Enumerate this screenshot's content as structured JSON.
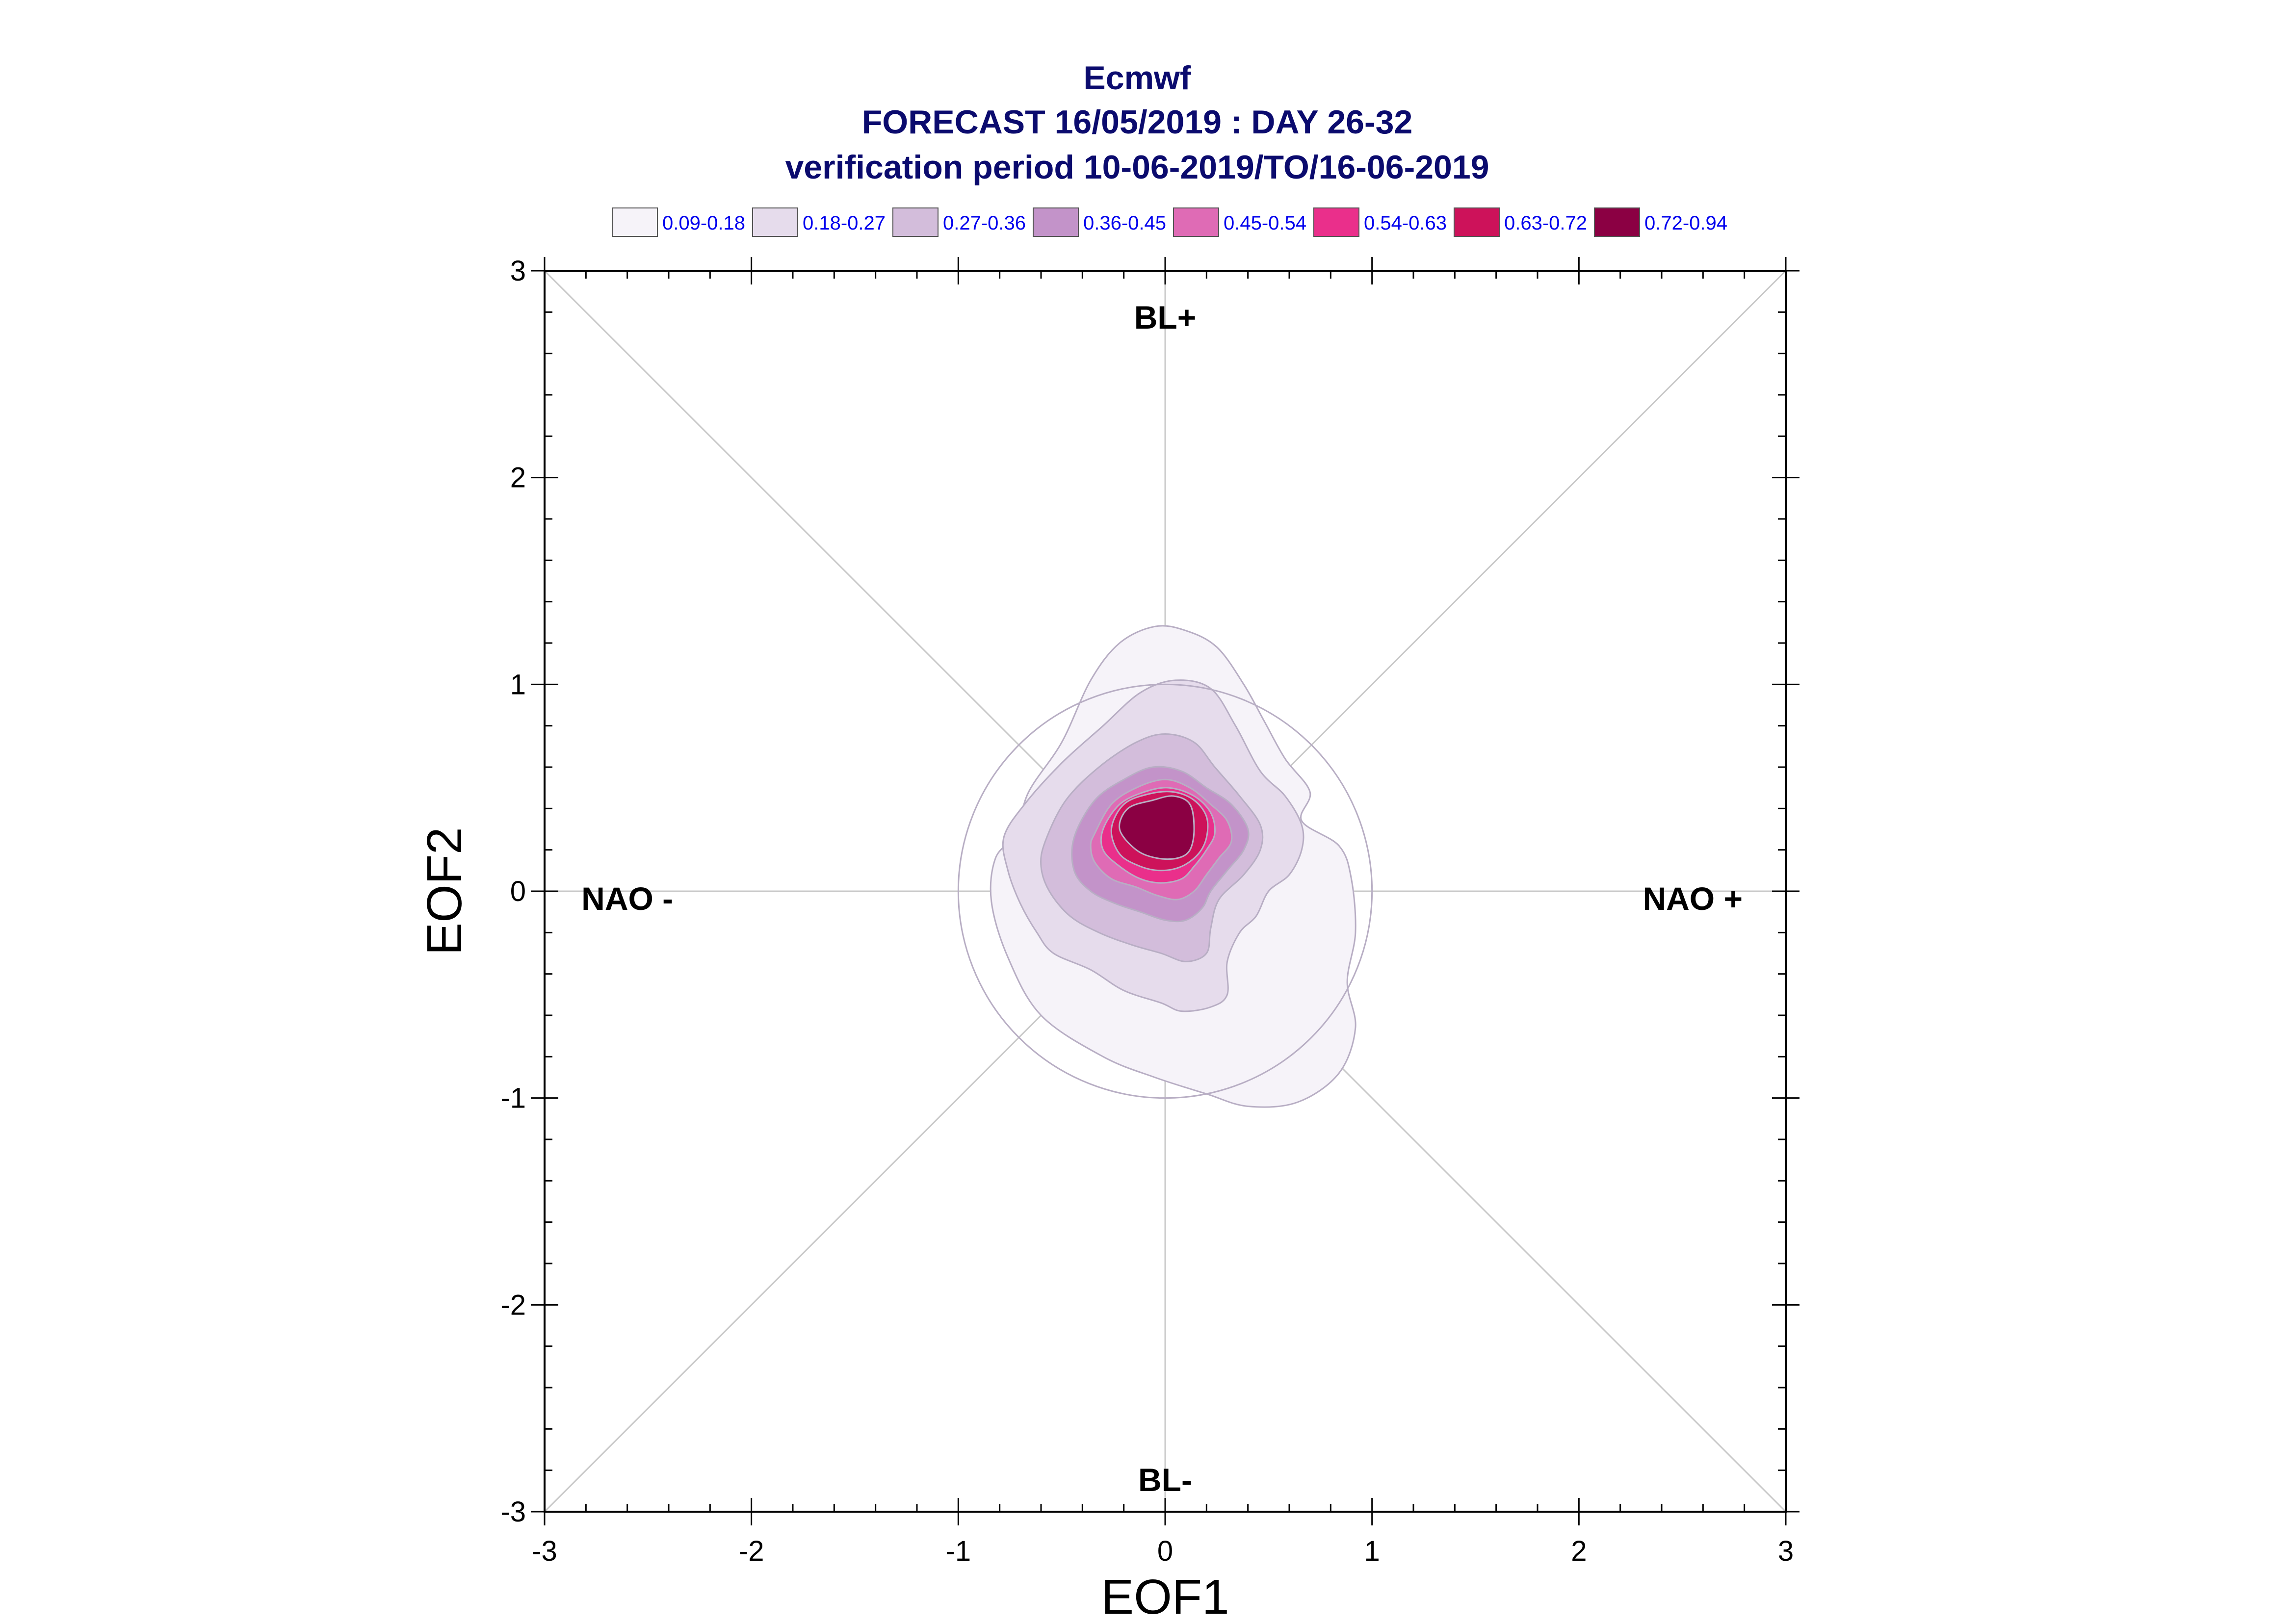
{
  "titles": [
    "Ecmwf",
    "FORECAST 16/05/2019 : DAY 26-32",
    "verification period 10-06-2019/TO/16-06-2019"
  ],
  "colors": {
    "title": "#0b0b6e",
    "legend_text": "#0000ee",
    "guide_lines": "#c8c8c8",
    "contour_edge": "#b8aec4",
    "frame": "#000000"
  },
  "legend": [
    {
      "label": "0.09-0.18",
      "color": "#f6f3f9"
    },
    {
      "label": "0.18-0.27",
      "color": "#e6dcec"
    },
    {
      "label": "0.27-0.36",
      "color": "#d3bddb"
    },
    {
      "label": "0.36-0.45",
      "color": "#c393c9"
    },
    {
      "label": "0.45-0.54",
      "color": "#df6bb5"
    },
    {
      "label": "0.54-0.63",
      "color": "#ea2f8b"
    },
    {
      "label": "0.63-0.72",
      "color": "#cd125a"
    },
    {
      "label": "0.72-0.94",
      "color": "#8b0043"
    }
  ],
  "chart_data": {
    "type": "contour",
    "xlabel": "EOF1",
    "ylabel": "EOF2",
    "xlim": [
      -3,
      3
    ],
    "ylim": [
      -3,
      3
    ],
    "xticks": [
      -3,
      -2,
      -1,
      0,
      1,
      2,
      3
    ],
    "yticks": [
      -3,
      -2,
      -1,
      0,
      1,
      2,
      3
    ],
    "grid": false,
    "reference_circle_radius": 1,
    "diagonal_lines": true,
    "regime_labels": [
      {
        "text": "BL+",
        "x": 0,
        "y": 2.72
      },
      {
        "text": "BL-",
        "x": 0,
        "y": -2.9
      },
      {
        "text": "NAO -",
        "x": -2.6,
        "y": -0.09
      },
      {
        "text": "NAO +",
        "x": 2.55,
        "y": -0.09
      }
    ],
    "density_center": [
      0.02,
      0.26
    ],
    "contour_levels": [
      {
        "range": "0.09-0.18",
        "points": [
          [
            -0.72,
            0.28
          ],
          [
            -0.66,
            0.48
          ],
          [
            -0.5,
            0.72
          ],
          [
            -0.36,
            1.02
          ],
          [
            -0.22,
            1.2
          ],
          [
            -0.05,
            1.28
          ],
          [
            0.1,
            1.26
          ],
          [
            0.25,
            1.18
          ],
          [
            0.38,
            1.0
          ],
          [
            0.48,
            0.82
          ],
          [
            0.58,
            0.64
          ],
          [
            0.7,
            0.48
          ],
          [
            0.66,
            0.34
          ],
          [
            0.84,
            0.22
          ],
          [
            0.9,
            0.06
          ],
          [
            0.92,
            -0.2
          ],
          [
            0.88,
            -0.44
          ],
          [
            0.92,
            -0.66
          ],
          [
            0.84,
            -0.88
          ],
          [
            0.64,
            -1.02
          ],
          [
            0.4,
            -1.04
          ],
          [
            0.2,
            -0.98
          ],
          [
            -0.05,
            -0.9
          ],
          [
            -0.3,
            -0.8
          ],
          [
            -0.6,
            -0.6
          ],
          [
            -0.76,
            -0.32
          ],
          [
            -0.84,
            -0.05
          ],
          [
            -0.82,
            0.16
          ]
        ]
      },
      {
        "range": "0.18-0.27",
        "points": [
          [
            -0.78,
            0.26
          ],
          [
            -0.68,
            0.42
          ],
          [
            -0.5,
            0.62
          ],
          [
            -0.3,
            0.8
          ],
          [
            -0.12,
            0.96
          ],
          [
            0.05,
            1.02
          ],
          [
            0.22,
            0.98
          ],
          [
            0.34,
            0.8
          ],
          [
            0.46,
            0.58
          ],
          [
            0.58,
            0.46
          ],
          [
            0.66,
            0.32
          ],
          [
            0.66,
            0.2
          ],
          [
            0.6,
            0.08
          ],
          [
            0.5,
            0.0
          ],
          [
            0.44,
            -0.12
          ],
          [
            0.36,
            -0.2
          ],
          [
            0.3,
            -0.34
          ],
          [
            0.3,
            -0.5
          ],
          [
            0.22,
            -0.56
          ],
          [
            0.08,
            -0.58
          ],
          [
            -0.02,
            -0.54
          ],
          [
            -0.2,
            -0.48
          ],
          [
            -0.36,
            -0.38
          ],
          [
            -0.54,
            -0.3
          ],
          [
            -0.62,
            -0.2
          ],
          [
            -0.7,
            -0.06
          ],
          [
            -0.76,
            0.1
          ]
        ]
      },
      {
        "range": "0.27-0.36",
        "points": [
          [
            -0.58,
            0.24
          ],
          [
            -0.48,
            0.44
          ],
          [
            -0.32,
            0.6
          ],
          [
            -0.14,
            0.72
          ],
          [
            0.0,
            0.76
          ],
          [
            0.14,
            0.72
          ],
          [
            0.24,
            0.6
          ],
          [
            0.36,
            0.46
          ],
          [
            0.46,
            0.32
          ],
          [
            0.46,
            0.2
          ],
          [
            0.38,
            0.08
          ],
          [
            0.26,
            -0.04
          ],
          [
            0.22,
            -0.18
          ],
          [
            0.2,
            -0.3
          ],
          [
            0.1,
            -0.34
          ],
          [
            -0.02,
            -0.3
          ],
          [
            -0.16,
            -0.26
          ],
          [
            -0.32,
            -0.2
          ],
          [
            -0.46,
            -0.12
          ],
          [
            -0.56,
            -0.0
          ],
          [
            -0.6,
            0.12
          ]
        ]
      },
      {
        "range": "0.36-0.45",
        "points": [
          [
            -0.44,
            0.26
          ],
          [
            -0.34,
            0.44
          ],
          [
            -0.2,
            0.54
          ],
          [
            -0.06,
            0.6
          ],
          [
            0.08,
            0.58
          ],
          [
            0.2,
            0.5
          ],
          [
            0.32,
            0.42
          ],
          [
            0.4,
            0.3
          ],
          [
            0.38,
            0.2
          ],
          [
            0.3,
            0.1
          ],
          [
            0.22,
            0.0
          ],
          [
            0.18,
            -0.08
          ],
          [
            0.1,
            -0.14
          ],
          [
            0.0,
            -0.14
          ],
          [
            -0.12,
            -0.1
          ],
          [
            -0.24,
            -0.06
          ],
          [
            -0.36,
            -0.0
          ],
          [
            -0.44,
            0.1
          ]
        ]
      },
      {
        "range": "0.45-0.54",
        "points": [
          [
            -0.34,
            0.28
          ],
          [
            -0.26,
            0.42
          ],
          [
            -0.14,
            0.5
          ],
          [
            -0.0,
            0.54
          ],
          [
            0.12,
            0.5
          ],
          [
            0.22,
            0.42
          ],
          [
            0.3,
            0.34
          ],
          [
            0.32,
            0.24
          ],
          [
            0.26,
            0.16
          ],
          [
            0.2,
            0.08
          ],
          [
            0.14,
            0.0
          ],
          [
            0.06,
            -0.04
          ],
          [
            -0.04,
            -0.02
          ],
          [
            -0.14,
            0.02
          ],
          [
            -0.26,
            0.06
          ],
          [
            -0.34,
            0.14
          ],
          [
            -0.36,
            0.22
          ]
        ]
      },
      {
        "range": "0.54-0.63",
        "points": [
          [
            -0.3,
            0.3
          ],
          [
            -0.22,
            0.42
          ],
          [
            -0.1,
            0.48
          ],
          [
            0.02,
            0.5
          ],
          [
            0.14,
            0.46
          ],
          [
            0.22,
            0.38
          ],
          [
            0.24,
            0.28
          ],
          [
            0.2,
            0.2
          ],
          [
            0.14,
            0.12
          ],
          [
            0.08,
            0.06
          ],
          [
            -0.02,
            0.04
          ],
          [
            -0.12,
            0.06
          ],
          [
            -0.22,
            0.12
          ],
          [
            -0.3,
            0.2
          ]
        ]
      },
      {
        "range": "0.63-0.72",
        "points": [
          [
            -0.26,
            0.3
          ],
          [
            -0.2,
            0.42
          ],
          [
            -0.08,
            0.47
          ],
          [
            0.04,
            0.48
          ],
          [
            0.14,
            0.44
          ],
          [
            0.2,
            0.36
          ],
          [
            0.2,
            0.26
          ],
          [
            0.16,
            0.18
          ],
          [
            0.08,
            0.12
          ],
          [
            -0.02,
            0.1
          ],
          [
            -0.12,
            0.12
          ],
          [
            -0.22,
            0.18
          ]
        ]
      },
      {
        "range": "0.72-0.94",
        "points": [
          [
            -0.22,
            0.3
          ],
          [
            -0.18,
            0.4
          ],
          [
            -0.06,
            0.44
          ],
          [
            0.04,
            0.46
          ],
          [
            0.12,
            0.42
          ],
          [
            0.14,
            0.3
          ],
          [
            0.12,
            0.2
          ],
          [
            0.06,
            0.16
          ],
          [
            -0.04,
            0.16
          ],
          [
            -0.14,
            0.2
          ]
        ]
      }
    ]
  }
}
